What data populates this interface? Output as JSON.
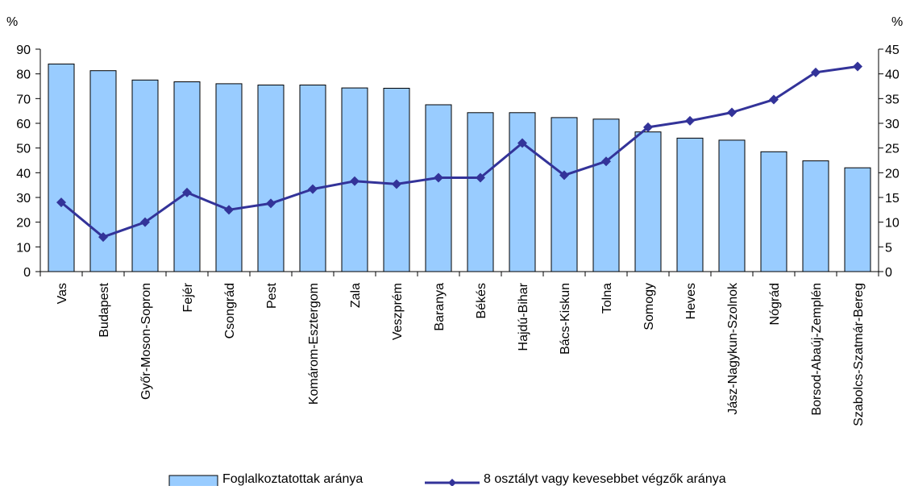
{
  "chart_data": {
    "type": "bar",
    "categories": [
      "Vas",
      "Budapest",
      "Győr-Moson-Sopron",
      "Fejér",
      "Csongrád",
      "Pest",
      "Komárom-Esztergom",
      "Zala",
      "Veszprém",
      "Baranya",
      "Békés",
      "Hajdú-Bihar",
      "Bács-Kiskun",
      "Tolna",
      "Somogy",
      "Heves",
      "Jász-Nagykun-Szolnok",
      "Nógrád",
      "Borsod-Abaúj-Zemplén",
      "Szabolcs-Szatmár-Bereg"
    ],
    "series": [
      {
        "name": "Foglalkoztatottak aránya",
        "type": "bar",
        "axis": "left",
        "color": "#99ccff",
        "values": [
          84,
          81.3,
          77.5,
          76.8,
          76,
          75.5,
          75.5,
          74.3,
          74.2,
          67.5,
          64.3,
          64.3,
          62.3,
          61.7,
          56.5,
          54,
          53.2,
          48.5,
          44.8,
          42
        ]
      },
      {
        "name": "8 osztályt vagy kevesebbet végzők aránya",
        "type": "line",
        "axis": "right",
        "color": "#333399",
        "values": [
          14,
          7,
          10,
          16,
          12.5,
          13.8,
          16.7,
          18.3,
          17.7,
          19,
          19,
          26,
          19.5,
          22.3,
          29.2,
          30.5,
          32.2,
          34.8,
          40.3,
          41.5
        ]
      }
    ],
    "y_left": {
      "label": "%",
      "min": 0,
      "max": 90,
      "ticks": [
        0,
        10,
        20,
        30,
        40,
        50,
        60,
        70,
        80,
        90
      ]
    },
    "y_right": {
      "label": "%",
      "min": 0,
      "max": 45,
      "ticks": [
        0,
        5,
        10,
        15,
        20,
        25,
        30,
        35,
        40,
        45
      ]
    },
    "grid": false,
    "legend_position": "bottom"
  }
}
